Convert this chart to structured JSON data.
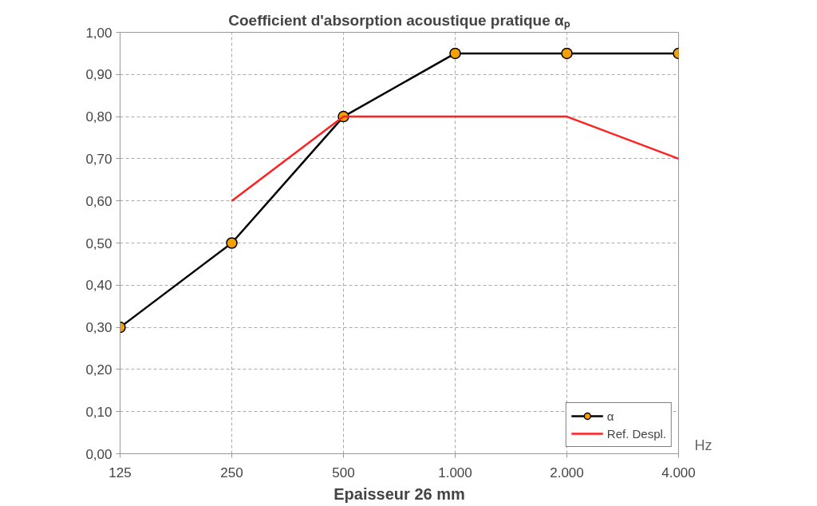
{
  "chart_data": {
    "type": "line",
    "title": "Coefficient d'absorption acoustique pratique αₚ",
    "xlabel": "Hz",
    "categories": [
      "125",
      "250",
      "500",
      "1.000",
      "2.000",
      "4.000"
    ],
    "series": [
      {
        "name": "α",
        "color": "#000000",
        "marker": "circle",
        "values": [
          0.3,
          0.5,
          0.8,
          0.95,
          0.95,
          0.95
        ]
      },
      {
        "name": "Ref. Despl.",
        "color": "#ff2020",
        "marker": "none",
        "values": [
          null,
          0.6,
          0.8,
          0.8,
          0.8,
          0.7
        ]
      }
    ],
    "ylim": [
      0,
      1
    ],
    "yticks": [
      {
        "value": 0,
        "label": "0,00"
      },
      {
        "value": 0.1,
        "label": "0,10"
      },
      {
        "value": 0.2,
        "label": "0,20"
      },
      {
        "value": 0.3,
        "label": "0,30"
      },
      {
        "value": 0.4,
        "label": "0,40"
      },
      {
        "value": 0.5,
        "label": "0,50"
      },
      {
        "value": 0.6,
        "label": "0,60"
      },
      {
        "value": 0.7,
        "label": "0,70"
      },
      {
        "value": 0.8,
        "label": "0,80"
      },
      {
        "value": 0.9,
        "label": "0,90"
      },
      {
        "value": 1,
        "label": "1,00"
      }
    ],
    "grid": true,
    "legend": "bottom right",
    "line_style": "solid",
    "annotations": [
      "Epaisseur 26 mm"
    ]
  }
}
